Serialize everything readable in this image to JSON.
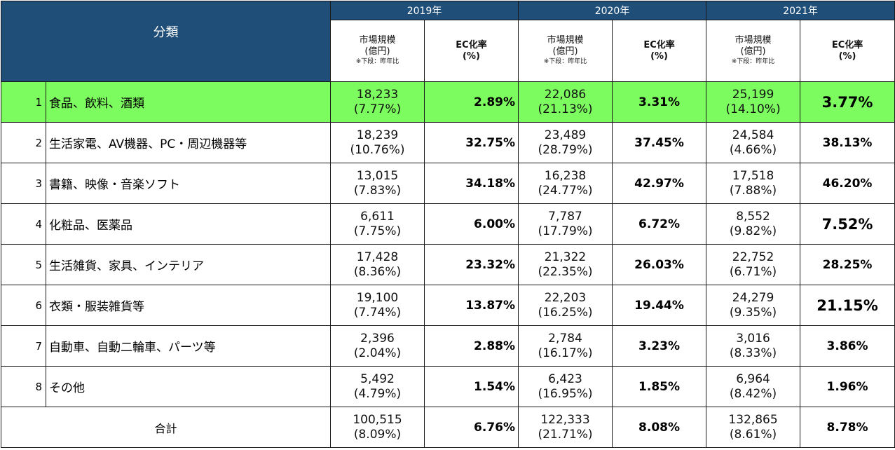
{
  "header": {
    "category_label": "分類",
    "years": [
      "2019年",
      "2020年",
      "2021年"
    ],
    "market_label_1": "市場規模",
    "market_label_2": "(億円)",
    "market_label_3": "※下段：昨年比",
    "ec_label_1": "EC化率",
    "ec_label_2": "(%)"
  },
  "rows": [
    {
      "no": "1",
      "category": "食品、飲料、酒類",
      "y2019_market": "18,233",
      "y2019_yoy": "(7.77%)",
      "y2019_ec": "2.89%",
      "y2020_market": "22,086",
      "y2020_yoy": "(21.13%)",
      "y2020_ec": "3.31%",
      "y2021_market": "25,199",
      "y2021_yoy": "(14.10%)",
      "y2021_ec": "3.77%"
    },
    {
      "no": "2",
      "category": "生活家電、AV機器、PC・周辺機器等",
      "y2019_market": "18,239",
      "y2019_yoy": "(10.76%)",
      "y2019_ec": "32.75%",
      "y2020_market": "23,489",
      "y2020_yoy": "(28.79%)",
      "y2020_ec": "37.45%",
      "y2021_market": "24,584",
      "y2021_yoy": "(4.66%)",
      "y2021_ec": "38.13%"
    },
    {
      "no": "3",
      "category": "書籍、映像・音楽ソフト",
      "y2019_market": "13,015",
      "y2019_yoy": "(7.83%)",
      "y2019_ec": "34.18%",
      "y2020_market": "16,238",
      "y2020_yoy": "(24.77%)",
      "y2020_ec": "42.97%",
      "y2021_market": "17,518",
      "y2021_yoy": "(7.88%)",
      "y2021_ec": "46.20%"
    },
    {
      "no": "4",
      "category": "化粧品、医薬品",
      "y2019_market": "6,611",
      "y2019_yoy": "(7.75%)",
      "y2019_ec": "6.00%",
      "y2020_market": "7,787",
      "y2020_yoy": "(17.79%)",
      "y2020_ec": "6.72%",
      "y2021_market": "8,552",
      "y2021_yoy": "(9.82%)",
      "y2021_ec": "7.52%"
    },
    {
      "no": "5",
      "category": "生活雑貨、家具、インテリア",
      "y2019_market": "17,428",
      "y2019_yoy": "(8.36%)",
      "y2019_ec": "23.32%",
      "y2020_market": "21,322",
      "y2020_yoy": "(22.35%)",
      "y2020_ec": "26.03%",
      "y2021_market": "22,752",
      "y2021_yoy": "(6.71%)",
      "y2021_ec": "28.25%"
    },
    {
      "no": "6",
      "category": "衣類・服装雑貨等",
      "y2019_market": "19,100",
      "y2019_yoy": "(7.74%)",
      "y2019_ec": "13.87%",
      "y2020_market": "22,203",
      "y2020_yoy": "(16.25%)",
      "y2020_ec": "19.44%",
      "y2021_market": "24,279",
      "y2021_yoy": "(9.35%)",
      "y2021_ec": "21.15%"
    },
    {
      "no": "7",
      "category": "自動車、自動二輪車、パーツ等",
      "y2019_market": "2,396",
      "y2019_yoy": "(2.04%)",
      "y2019_ec": "2.88%",
      "y2020_market": "2,784",
      "y2020_yoy": "(16.17%)",
      "y2020_ec": "3.23%",
      "y2021_market": "3,016",
      "y2021_yoy": "(8.33%)",
      "y2021_ec": "3.86%"
    },
    {
      "no": "8",
      "category": "その他",
      "y2019_market": "5,492",
      "y2019_yoy": "(4.79%)",
      "y2019_ec": "1.54%",
      "y2020_market": "6,423",
      "y2020_yoy": "(16.95%)",
      "y2020_ec": "1.85%",
      "y2021_market": "6,964",
      "y2021_yoy": "(8.42%)",
      "y2021_ec": "1.96%"
    }
  ],
  "total": {
    "label": "合計",
    "y2019_market": "100,515",
    "y2019_yoy": "(8.09%)",
    "y2019_ec": "6.76%",
    "y2020_market": "122,333",
    "y2020_yoy": "(21.71%)",
    "y2020_ec": "8.08%",
    "y2021_market": "132,865",
    "y2021_yoy": "(8.61%)",
    "y2021_ec": "8.78%"
  },
  "colors": {
    "header_bg": "#1f4e79",
    "highlight_row": "#7dfc5f"
  }
}
